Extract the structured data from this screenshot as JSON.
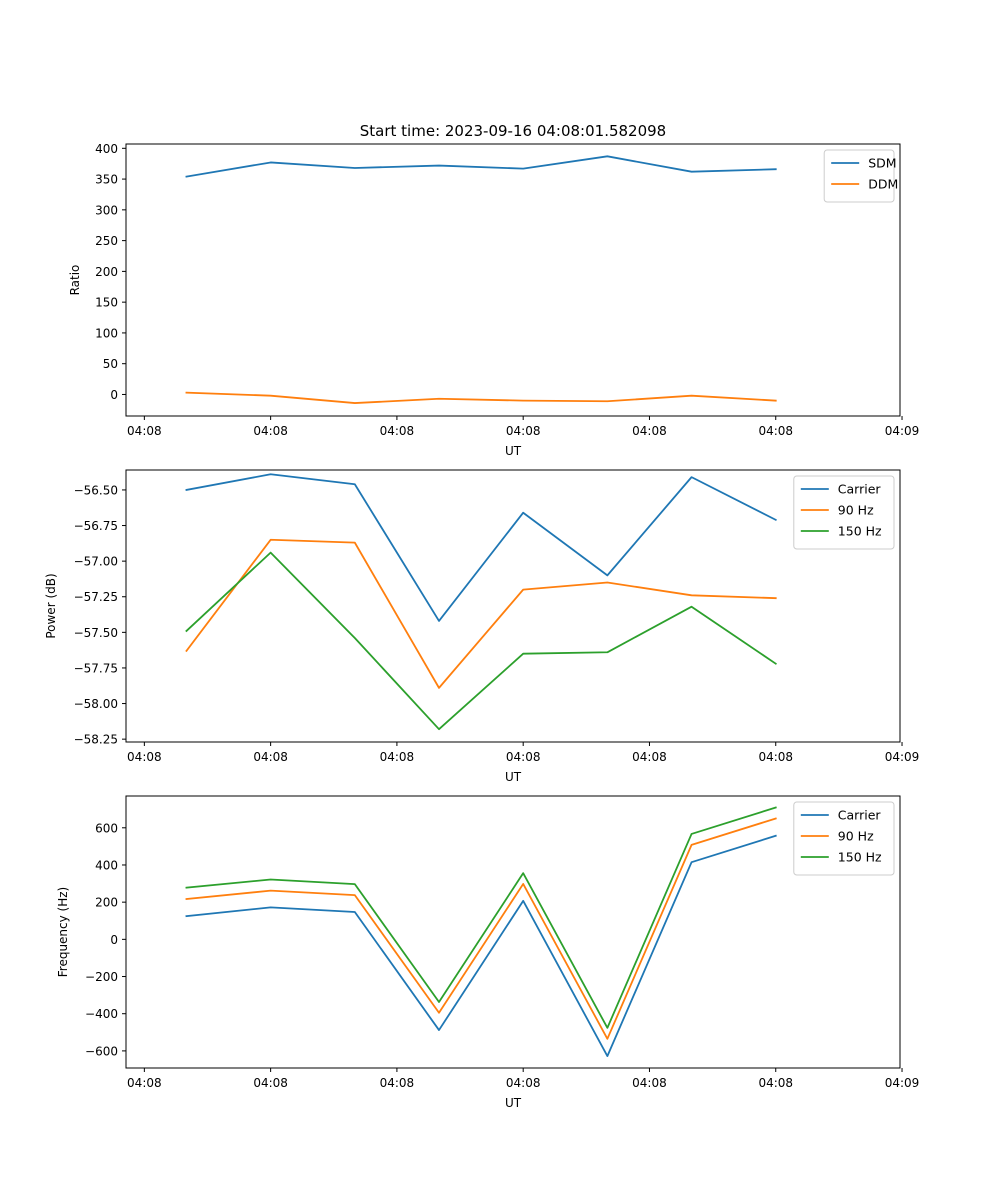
{
  "figure_title": "Start time: 2023-09-16 04:08:01.582098",
  "colors": {
    "blue": "#1f77b4",
    "orange": "#ff7f0e",
    "green": "#2ca02c"
  },
  "chart_data": [
    {
      "type": "line",
      "title": "Start time: 2023-09-16 04:08:01.582098",
      "xlabel": "UT",
      "ylabel": "Ratio",
      "x": [
        1,
        2,
        3,
        4,
        5,
        6,
        7,
        8
      ],
      "xlim": [
        0.282,
        9.476
      ],
      "xticks": [
        0.5,
        2,
        3.5,
        5,
        6.5,
        8,
        9.5
      ],
      "xtick_labels": [
        "04:08",
        "04:08",
        "04:08",
        "04:08",
        "04:08",
        "04:08",
        "04:09"
      ],
      "ylim": [
        -35,
        407
      ],
      "yticks": [
        0,
        50,
        100,
        150,
        200,
        250,
        300,
        350,
        400
      ],
      "ytick_labels": [
        "0",
        "50",
        "100",
        "150",
        "200",
        "250",
        "300",
        "350",
        "400"
      ],
      "legend_position": "top-right",
      "series": [
        {
          "name": "SDM",
          "color": "#1f77b4",
          "values": [
            354,
            377,
            368,
            372,
            367,
            387,
            362,
            366
          ]
        },
        {
          "name": "DDM",
          "color": "#ff7f0e",
          "values": [
            3,
            -2,
            -14,
            -7,
            -10,
            -11,
            -2,
            -10
          ]
        }
      ]
    },
    {
      "type": "line",
      "xlabel": "UT",
      "ylabel": "Power (dB)",
      "x": [
        1,
        2,
        3,
        4,
        5,
        6,
        7,
        8
      ],
      "xlim": [
        0.282,
        9.476
      ],
      "xticks": [
        0.5,
        2,
        3.5,
        5,
        6.5,
        8,
        9.5
      ],
      "xtick_labels": [
        "04:08",
        "04:08",
        "04:08",
        "04:08",
        "04:08",
        "04:08",
        "04:09"
      ],
      "ylim": [
        -58.27,
        -56.36
      ],
      "yticks": [
        -58.25,
        -58.0,
        -57.75,
        -57.5,
        -57.25,
        -57.0,
        -56.75,
        -56.5
      ],
      "ytick_labels": [
        "−58.25",
        "−58.00",
        "−57.75",
        "−57.50",
        "−57.25",
        "−57.00",
        "−56.75",
        "−56.50"
      ],
      "legend_position": "top-right",
      "series": [
        {
          "name": "Carrier",
          "color": "#1f77b4",
          "values": [
            -56.5,
            -56.39,
            -56.46,
            -57.42,
            -56.66,
            -57.1,
            -56.41,
            -56.71
          ]
        },
        {
          "name": "90 Hz",
          "color": "#ff7f0e",
          "values": [
            -57.63,
            -56.85,
            -56.87,
            -57.89,
            -57.2,
            -57.15,
            -57.24,
            -57.26
          ]
        },
        {
          "name": "150 Hz",
          "color": "#2ca02c",
          "values": [
            -57.49,
            -56.94,
            -57.54,
            -58.18,
            -57.65,
            -57.64,
            -57.32,
            -57.72
          ]
        }
      ]
    },
    {
      "type": "line",
      "xlabel": "UT",
      "ylabel": "Frequency (Hz)",
      "x": [
        1,
        2,
        3,
        4,
        5,
        6,
        7,
        8
      ],
      "xlim": [
        0.282,
        9.476
      ],
      "xticks": [
        0.5,
        2,
        3.5,
        5,
        6.5,
        8,
        9.5
      ],
      "xtick_labels": [
        "04:08",
        "04:08",
        "04:08",
        "04:08",
        "04:08",
        "04:08",
        "04:09"
      ],
      "ylim": [
        -692,
        771
      ],
      "yticks": [
        -600,
        -400,
        -200,
        0,
        200,
        400,
        600
      ],
      "ytick_labels": [
        "−600",
        "−400",
        "−200",
        "0",
        "200",
        "400",
        "600"
      ],
      "legend_position": "top-right",
      "series": [
        {
          "name": "Carrier",
          "color": "#1f77b4",
          "values": [
            125,
            172,
            147,
            -488,
            207,
            -628,
            415,
            557
          ]
        },
        {
          "name": "90 Hz",
          "color": "#ff7f0e",
          "values": [
            217,
            262,
            238,
            -395,
            298,
            -535,
            508,
            650
          ]
        },
        {
          "name": "150 Hz",
          "color": "#2ca02c",
          "values": [
            278,
            322,
            297,
            -337,
            356,
            -476,
            567,
            709
          ]
        }
      ]
    }
  ]
}
